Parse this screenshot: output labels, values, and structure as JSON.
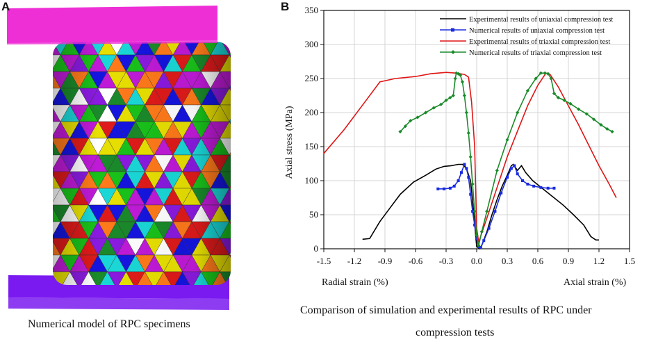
{
  "panel_a": {
    "label": "A",
    "caption": "Numerical model of RPC specimens",
    "colors": [
      "#e8e000",
      "#19c21a",
      "#1515e0",
      "#e01a1a",
      "#c01ad8",
      "#1ad8d8",
      "#ff7a1a",
      "#1a8a2a",
      "#ffffff",
      "#8a1ae0"
    ],
    "top_plate_color": "#ef2fd6",
    "bottom_plate_color": "#7a1af0"
  },
  "panel_b": {
    "label": "B",
    "caption_line1": "Comparison of simulation and experimental results of RPC   under",
    "caption_line2": "compression tests",
    "radial_label": "Radial strain (%)",
    "axial_label": "Axial strain (%)"
  },
  "chart_data": {
    "type": "line",
    "title": "",
    "xlabel": "",
    "ylabel": "Axial stress (MPa)",
    "xlim": [
      -1.5,
      1.5
    ],
    "ylim": [
      0,
      350
    ],
    "xticks": [
      -1.5,
      -1.2,
      -0.9,
      -0.6,
      -0.3,
      0.0,
      0.3,
      0.6,
      0.9,
      1.2,
      1.5
    ],
    "xtick_labels": [
      "-1.5",
      "-1.2",
      "-0.9",
      "-0.6",
      "-0.3",
      "0.0",
      "0.3",
      "0.6",
      "0.9",
      "1.2",
      "1.5"
    ],
    "yticks": [
      0,
      50,
      100,
      150,
      200,
      250,
      300,
      350
    ],
    "ytick_labels": [
      "0",
      "50",
      "100",
      "150",
      "200",
      "250",
      "300",
      "350"
    ],
    "grid": true,
    "legend_position": "top-right",
    "series": [
      {
        "name": "Experimental results of uniaxial compression test",
        "color": "#000000",
        "marker": "none",
        "points": [
          [
            -1.12,
            14
          ],
          [
            -1.05,
            15
          ],
          [
            -0.95,
            40
          ],
          [
            -0.85,
            60
          ],
          [
            -0.75,
            80
          ],
          [
            -0.62,
            98
          ],
          [
            -0.5,
            108
          ],
          [
            -0.4,
            117
          ],
          [
            -0.32,
            121
          ],
          [
            -0.25,
            122
          ],
          [
            -0.18,
            124
          ],
          [
            -0.14,
            124
          ],
          [
            -0.1,
            118
          ],
          [
            -0.06,
            100
          ],
          [
            -0.03,
            55
          ],
          [
            -0.01,
            20
          ],
          [
            0.0,
            3
          ],
          [
            0.03,
            0
          ],
          [
            0.05,
            5
          ],
          [
            0.1,
            25
          ],
          [
            0.15,
            50
          ],
          [
            0.2,
            72
          ],
          [
            0.25,
            92
          ],
          [
            0.3,
            108
          ],
          [
            0.34,
            122
          ],
          [
            0.36,
            124
          ],
          [
            0.4,
            115
          ],
          [
            0.44,
            122
          ],
          [
            0.48,
            112
          ],
          [
            0.55,
            100
          ],
          [
            0.65,
            88
          ],
          [
            0.75,
            76
          ],
          [
            0.85,
            64
          ],
          [
            0.95,
            50
          ],
          [
            1.05,
            35
          ],
          [
            1.12,
            18
          ],
          [
            1.17,
            13
          ],
          [
            1.2,
            13
          ]
        ]
      },
      {
        "name": "Numerical results of uniaxial compression test",
        "color": "#1a2be0",
        "marker": "square",
        "points": [
          [
            -0.38,
            88
          ],
          [
            -0.32,
            88
          ],
          [
            -0.26,
            89
          ],
          [
            -0.22,
            92
          ],
          [
            -0.18,
            100
          ],
          [
            -0.15,
            112
          ],
          [
            -0.12,
            124
          ],
          [
            -0.1,
            118
          ],
          [
            -0.08,
            105
          ],
          [
            -0.06,
            80
          ],
          [
            -0.04,
            55
          ],
          [
            -0.02,
            35
          ],
          [
            0.0,
            15
          ],
          [
            0.02,
            3
          ],
          [
            0.04,
            2
          ],
          [
            0.07,
            12
          ],
          [
            0.12,
            30
          ],
          [
            0.18,
            55
          ],
          [
            0.24,
            82
          ],
          [
            0.3,
            105
          ],
          [
            0.34,
            118
          ],
          [
            0.37,
            122
          ],
          [
            0.4,
            110
          ],
          [
            0.45,
            100
          ],
          [
            0.5,
            95
          ],
          [
            0.56,
            92
          ],
          [
            0.63,
            90
          ],
          [
            0.7,
            89
          ],
          [
            0.76,
            89
          ]
        ]
      },
      {
        "name": "Experimental results of triaxial compression test",
        "color": "#e01515",
        "marker": "none",
        "points": [
          [
            -1.5,
            140
          ],
          [
            -1.3,
            175
          ],
          [
            -1.1,
            215
          ],
          [
            -0.95,
            245
          ],
          [
            -0.8,
            250
          ],
          [
            -0.6,
            253
          ],
          [
            -0.45,
            257
          ],
          [
            -0.3,
            259
          ],
          [
            -0.2,
            258
          ],
          [
            -0.12,
            256
          ],
          [
            -0.08,
            252
          ],
          [
            -0.05,
            215
          ],
          [
            -0.02,
            150
          ],
          [
            -0.01,
            90
          ],
          [
            0.0,
            30
          ],
          [
            0.02,
            10
          ],
          [
            0.1,
            45
          ],
          [
            0.3,
            135
          ],
          [
            0.5,
            210
          ],
          [
            0.6,
            240
          ],
          [
            0.68,
            258
          ],
          [
            0.72,
            256
          ],
          [
            0.8,
            238
          ],
          [
            0.9,
            210
          ],
          [
            1.0,
            182
          ],
          [
            1.1,
            152
          ],
          [
            1.2,
            122
          ],
          [
            1.3,
            95
          ],
          [
            1.37,
            75
          ]
        ]
      },
      {
        "name": "Numerical results of triaxial compression test",
        "color": "#1a8a2a",
        "marker": "diamond",
        "points": [
          [
            -0.75,
            172
          ],
          [
            -0.7,
            180
          ],
          [
            -0.65,
            188
          ],
          [
            -0.58,
            193
          ],
          [
            -0.5,
            200
          ],
          [
            -0.42,
            207
          ],
          [
            -0.35,
            212
          ],
          [
            -0.3,
            218
          ],
          [
            -0.26,
            222
          ],
          [
            -0.23,
            225
          ],
          [
            -0.21,
            250
          ],
          [
            -0.2,
            258
          ],
          [
            -0.18,
            257
          ],
          [
            -0.16,
            255
          ],
          [
            -0.14,
            245
          ],
          [
            -0.12,
            225
          ],
          [
            -0.1,
            200
          ],
          [
            -0.08,
            170
          ],
          [
            -0.06,
            135
          ],
          [
            -0.04,
            95
          ],
          [
            -0.02,
            55
          ],
          [
            0.0,
            20
          ],
          [
            0.02,
            5
          ],
          [
            0.05,
            25
          ],
          [
            0.1,
            55
          ],
          [
            0.2,
            115
          ],
          [
            0.3,
            160
          ],
          [
            0.4,
            200
          ],
          [
            0.5,
            232
          ],
          [
            0.58,
            250
          ],
          [
            0.63,
            258
          ],
          [
            0.67,
            258
          ],
          [
            0.7,
            257
          ],
          [
            0.73,
            250
          ],
          [
            0.76,
            228
          ],
          [
            0.8,
            222
          ],
          [
            0.86,
            218
          ],
          [
            0.92,
            213
          ],
          [
            1.0,
            205
          ],
          [
            1.08,
            198
          ],
          [
            1.15,
            190
          ],
          [
            1.22,
            182
          ],
          [
            1.28,
            176
          ],
          [
            1.33,
            172
          ]
        ]
      }
    ]
  }
}
